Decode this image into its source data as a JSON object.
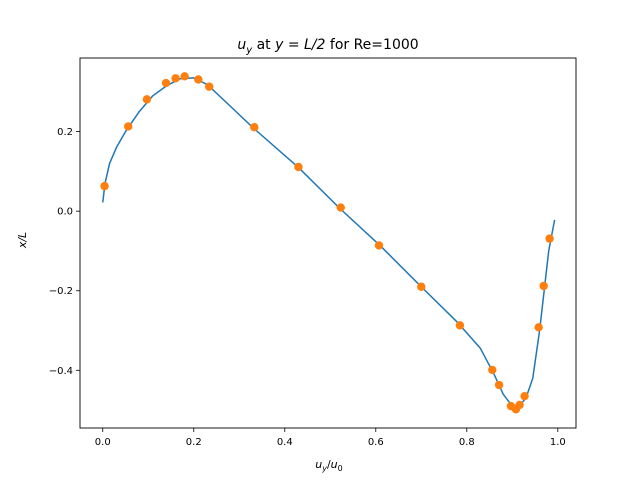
{
  "chart_data": {
    "type": "line",
    "title": {
      "var": "u",
      "var_sub": "y",
      "mid": " at ",
      "cond": "y = L/2",
      "suffix": " for Re=1000"
    },
    "xlabel": {
      "num": "u",
      "num_sub": "y",
      "sep": "/",
      "den": "u",
      "den_sub": "0"
    },
    "ylabel": {
      "text": "x/L"
    },
    "xlim": [
      -0.05,
      1.04
    ],
    "ylim": [
      -0.545,
      0.385
    ],
    "x_ticks": [
      0.0,
      0.2,
      0.4,
      0.6,
      0.8,
      1.0
    ],
    "x_tick_labels": [
      "0.0",
      "0.2",
      "0.4",
      "0.6",
      "0.8",
      "1.0"
    ],
    "y_ticks": [
      -0.4,
      -0.2,
      0.0,
      0.2
    ],
    "y_tick_labels": [
      "−0.4",
      "−0.2",
      "0.0",
      "0.2"
    ],
    "grid": false,
    "series": [
      {
        "kind": "line",
        "color": "#1f77b4",
        "x": [
          0.0,
          0.005,
          0.015,
          0.03,
          0.05,
          0.08,
          0.11,
          0.14,
          0.17,
          0.2,
          0.23,
          0.27,
          0.33,
          0.43,
          0.52,
          0.61,
          0.7,
          0.78,
          0.83,
          0.86,
          0.88,
          0.9,
          0.915,
          0.93,
          0.945,
          0.96,
          0.97,
          0.98,
          0.993
        ],
        "y": [
          0.022,
          0.07,
          0.12,
          0.16,
          0.2,
          0.25,
          0.29,
          0.315,
          0.333,
          0.335,
          0.318,
          0.275,
          0.21,
          0.11,
          0.008,
          -0.087,
          -0.19,
          -0.28,
          -0.345,
          -0.41,
          -0.46,
          -0.49,
          -0.49,
          -0.47,
          -0.42,
          -0.3,
          -0.2,
          -0.1,
          -0.022
        ]
      },
      {
        "kind": "scatter",
        "color": "#ff7f0e",
        "x": [
          0.004,
          0.056,
          0.097,
          0.139,
          0.16,
          0.18,
          0.21,
          0.234,
          0.333,
          0.43,
          0.523,
          0.607,
          0.7,
          0.785,
          0.856,
          0.871,
          0.897,
          0.908,
          0.916,
          0.927,
          0.958,
          0.969,
          0.982
        ],
        "y": [
          0.063,
          0.213,
          0.281,
          0.322,
          0.334,
          0.339,
          0.331,
          0.313,
          0.211,
          0.111,
          0.009,
          -0.086,
          -0.19,
          -0.287,
          -0.399,
          -0.437,
          -0.49,
          -0.498,
          -0.487,
          -0.465,
          -0.292,
          -0.188,
          -0.069
        ]
      }
    ]
  }
}
